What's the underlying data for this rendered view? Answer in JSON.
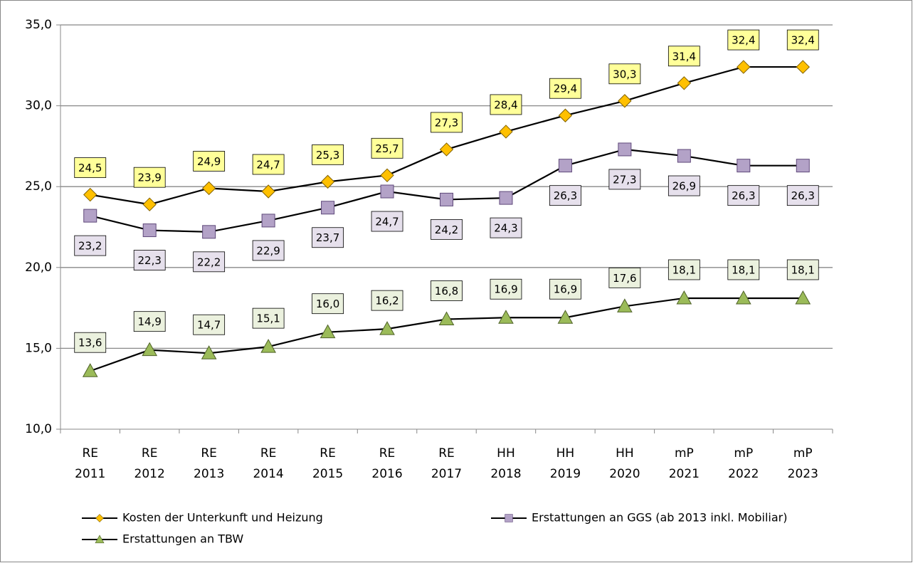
{
  "chart_data": {
    "type": "line",
    "categories": [
      [
        "RE",
        "2011"
      ],
      [
        "RE",
        "2012"
      ],
      [
        "RE",
        "2013"
      ],
      [
        "RE",
        "2014"
      ],
      [
        "RE",
        "2015"
      ],
      [
        "RE",
        "2016"
      ],
      [
        "RE",
        "2017"
      ],
      [
        "HH",
        "2018"
      ],
      [
        "HH",
        "2019"
      ],
      [
        "HH",
        "2020"
      ],
      [
        "mP",
        "2021"
      ],
      [
        "mP",
        "2022"
      ],
      [
        "mP",
        "2023"
      ]
    ],
    "ylim": [
      10,
      35
    ],
    "yticks": [
      {
        "value": 10,
        "label": "10,0"
      },
      {
        "value": 15,
        "label": "15,0"
      },
      {
        "value": 20,
        "label": "20,0"
      },
      {
        "value": 25,
        "label": "25,0"
      },
      {
        "value": 30,
        "label": "30,0"
      },
      {
        "value": 35,
        "label": "35,0"
      }
    ],
    "grid": true,
    "legend": "bottom",
    "series": [
      {
        "name": "Kosten der Unterkunft und Heizung",
        "color": "#ffc000",
        "label_color": "#ffff99",
        "marker": "diamond",
        "values": [
          24.5,
          23.9,
          24.9,
          24.7,
          25.3,
          25.7,
          27.3,
          28.4,
          29.4,
          30.3,
          31.4,
          32.4,
          32.4
        ],
        "value_labels": [
          "24,5",
          "23,9",
          "24,9",
          "24,7",
          "25,3",
          "25,7",
          "27,3",
          "28,4",
          "29,4",
          "30,3",
          "31,4",
          "32,4",
          "32,4"
        ]
      },
      {
        "name": "Erstattungen an GGS (ab 2013 inkl. Mobiliar)",
        "color": "#b3a2c7",
        "label_color": "#e6e0ec",
        "marker": "square",
        "values": [
          23.2,
          22.3,
          22.2,
          22.9,
          23.7,
          24.7,
          24.2,
          24.3,
          26.3,
          27.3,
          26.9,
          26.3,
          26.3
        ],
        "value_labels": [
          "23,2",
          "22,3",
          "22,2",
          "22,9",
          "23,7",
          "24,7",
          "24,2",
          "24,3",
          "26,3",
          "27,3",
          "26,9",
          "26,3",
          "26,3"
        ]
      },
      {
        "name": "Erstattungen an TBW",
        "color": "#9bbb59",
        "label_color": "#ebf1de",
        "marker": "triangle",
        "values": [
          13.6,
          14.9,
          14.7,
          15.1,
          16.0,
          16.2,
          16.8,
          16.9,
          16.9,
          17.6,
          18.1,
          18.1,
          18.1
        ],
        "value_labels": [
          "13,6",
          "14,9",
          "14,7",
          "15,1",
          "16,0",
          "16,2",
          "16,8",
          "16,9",
          "16,9",
          "17,6",
          "18,1",
          "18,1",
          "18,1"
        ]
      }
    ]
  }
}
